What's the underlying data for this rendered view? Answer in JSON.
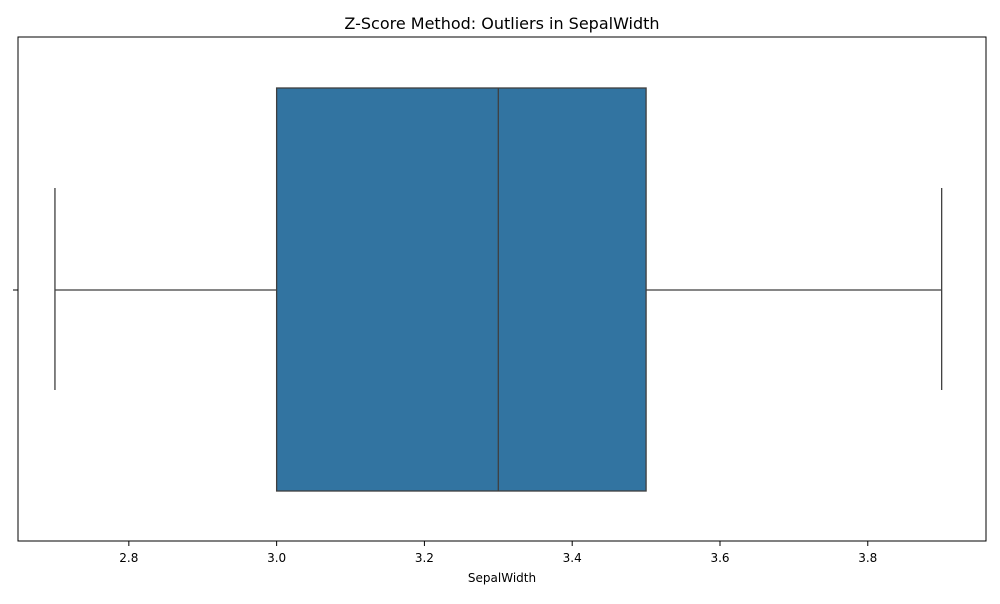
{
  "chart_data": {
    "type": "box",
    "title": "Z-Score Method: Outliers in SepalWidth",
    "xlabel": "SepalWidth",
    "ylabel": "",
    "orientation": "horizontal",
    "xlim": [
      2.65,
      3.96
    ],
    "x_ticks": [
      "2.8",
      "3.0",
      "3.2",
      "3.4",
      "3.6",
      "3.8"
    ],
    "grid": false,
    "box": {
      "min": 2.7,
      "q1": 3.0,
      "median": 3.3,
      "q3": 3.5,
      "max": 3.9,
      "outliers": []
    },
    "colors": {
      "box_fill": "#3274a1",
      "line": "#3f3f3f"
    }
  }
}
